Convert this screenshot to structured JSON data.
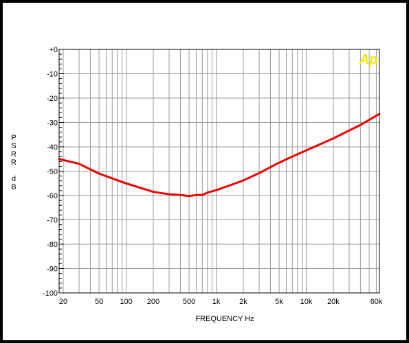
{
  "chart_data": {
    "type": "line",
    "title": "",
    "xlabel": "FREQUENCY Hz",
    "ylabel": "PSRR dB",
    "ylabel_lines": [
      "P",
      "S",
      "R",
      "R",
      "",
      "d",
      "B"
    ],
    "x_scale": "log",
    "xlim": [
      18,
      65000
    ],
    "ylim": [
      -100,
      0
    ],
    "grid": true,
    "x_ticks": [
      {
        "value": 20,
        "label": "20"
      },
      {
        "value": 50,
        "label": "50"
      },
      {
        "value": 100,
        "label": "100"
      },
      {
        "value": 200,
        "label": "200"
      },
      {
        "value": 500,
        "label": "500"
      },
      {
        "value": 1000,
        "label": "1k"
      },
      {
        "value": 2000,
        "label": "2k"
      },
      {
        "value": 5000,
        "label": "5k"
      },
      {
        "value": 10000,
        "label": "10k"
      },
      {
        "value": 20000,
        "label": "20k"
      },
      {
        "value": 60000,
        "label": "60k"
      }
    ],
    "y_ticks": [
      {
        "value": 0,
        "label": "+0"
      },
      {
        "value": -10,
        "label": "-10"
      },
      {
        "value": -20,
        "label": "-20"
      },
      {
        "value": -30,
        "label": "-30"
      },
      {
        "value": -40,
        "label": "-40"
      },
      {
        "value": -50,
        "label": "-50"
      },
      {
        "value": -60,
        "label": "-60"
      },
      {
        "value": -70,
        "label": "-70"
      },
      {
        "value": -80,
        "label": "-80"
      },
      {
        "value": -90,
        "label": "-90"
      },
      {
        "value": -100,
        "label": "-100"
      }
    ],
    "series": [
      {
        "color": "#ee0000",
        "x": [
          18,
          30,
          50,
          100,
          200,
          300,
          400,
          500,
          600,
          700,
          800,
          1000,
          1500,
          2000,
          3000,
          5000,
          7000,
          10000,
          20000,
          40000,
          65000
        ],
        "y": [
          -45,
          -47,
          -51,
          -55,
          -58.5,
          -59.5,
          -59.8,
          -60.2,
          -59.8,
          -59.8,
          -58.8,
          -57.8,
          -55.5,
          -53.8,
          -50.8,
          -46.5,
          -44,
          -41.5,
          -36.5,
          -31,
          -26.5
        ]
      }
    ]
  },
  "logo_text": "Ap",
  "colors": {
    "grid": "#999999",
    "frame": "#000000",
    "logo": "#ffe600"
  }
}
